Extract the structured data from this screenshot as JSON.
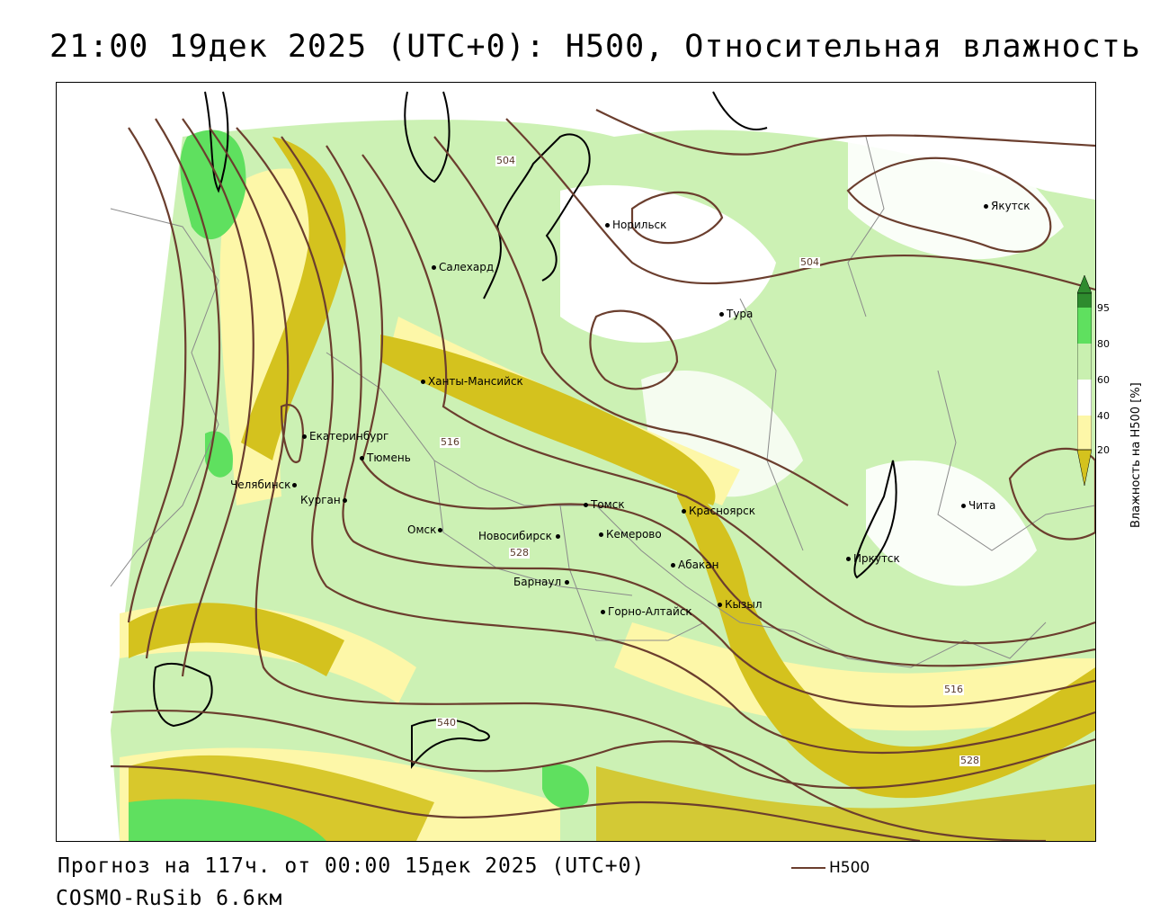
{
  "header": {
    "title": "21:00 19дек 2025 (UTC+0): H500, Относительная влажность"
  },
  "map": {
    "cities": [
      {
        "name": "Якутск"
      },
      {
        "name": "Норильск"
      },
      {
        "name": "Салехард"
      },
      {
        "name": "Тура"
      },
      {
        "name": "Ханты-Мансийск"
      },
      {
        "name": "Екатеринбург"
      },
      {
        "name": "Тюмень"
      },
      {
        "name": "Челябинск"
      },
      {
        "name": "Курган"
      },
      {
        "name": "Омск"
      },
      {
        "name": "Новосибирск"
      },
      {
        "name": "Томск"
      },
      {
        "name": "Кемерово"
      },
      {
        "name": "Красноярск"
      },
      {
        "name": "Абакан"
      },
      {
        "name": "Барнаул"
      },
      {
        "name": "Горно-Алтайск"
      },
      {
        "name": "Кызыл"
      },
      {
        "name": "Иркутск"
      },
      {
        "name": "Чита"
      }
    ],
    "contour_labels": [
      "504",
      "504",
      "516",
      "528",
      "540",
      "516",
      "528"
    ],
    "colors": {
      "contour": "#6b3e2e",
      "rh_0_20": "#d4c21e",
      "rh_20_40": "#fdf7a8",
      "rh_40_60": "#ffffff",
      "rh_60_80": "#c9f0b0",
      "rh_80_95": "#5fe05f",
      "rh_95_100": "#2e8b2e"
    }
  },
  "legend": {
    "title": "Влажность на H500 [%]",
    "ticks": [
      "95",
      "80",
      "60",
      "40",
      "20"
    ]
  },
  "footer": {
    "forecast": "Прогноз на 117ч. от 00:00 15дек 2025 (UTC+0)",
    "model": "COSMO-RuSib 6.6км",
    "series_label": "H500"
  }
}
